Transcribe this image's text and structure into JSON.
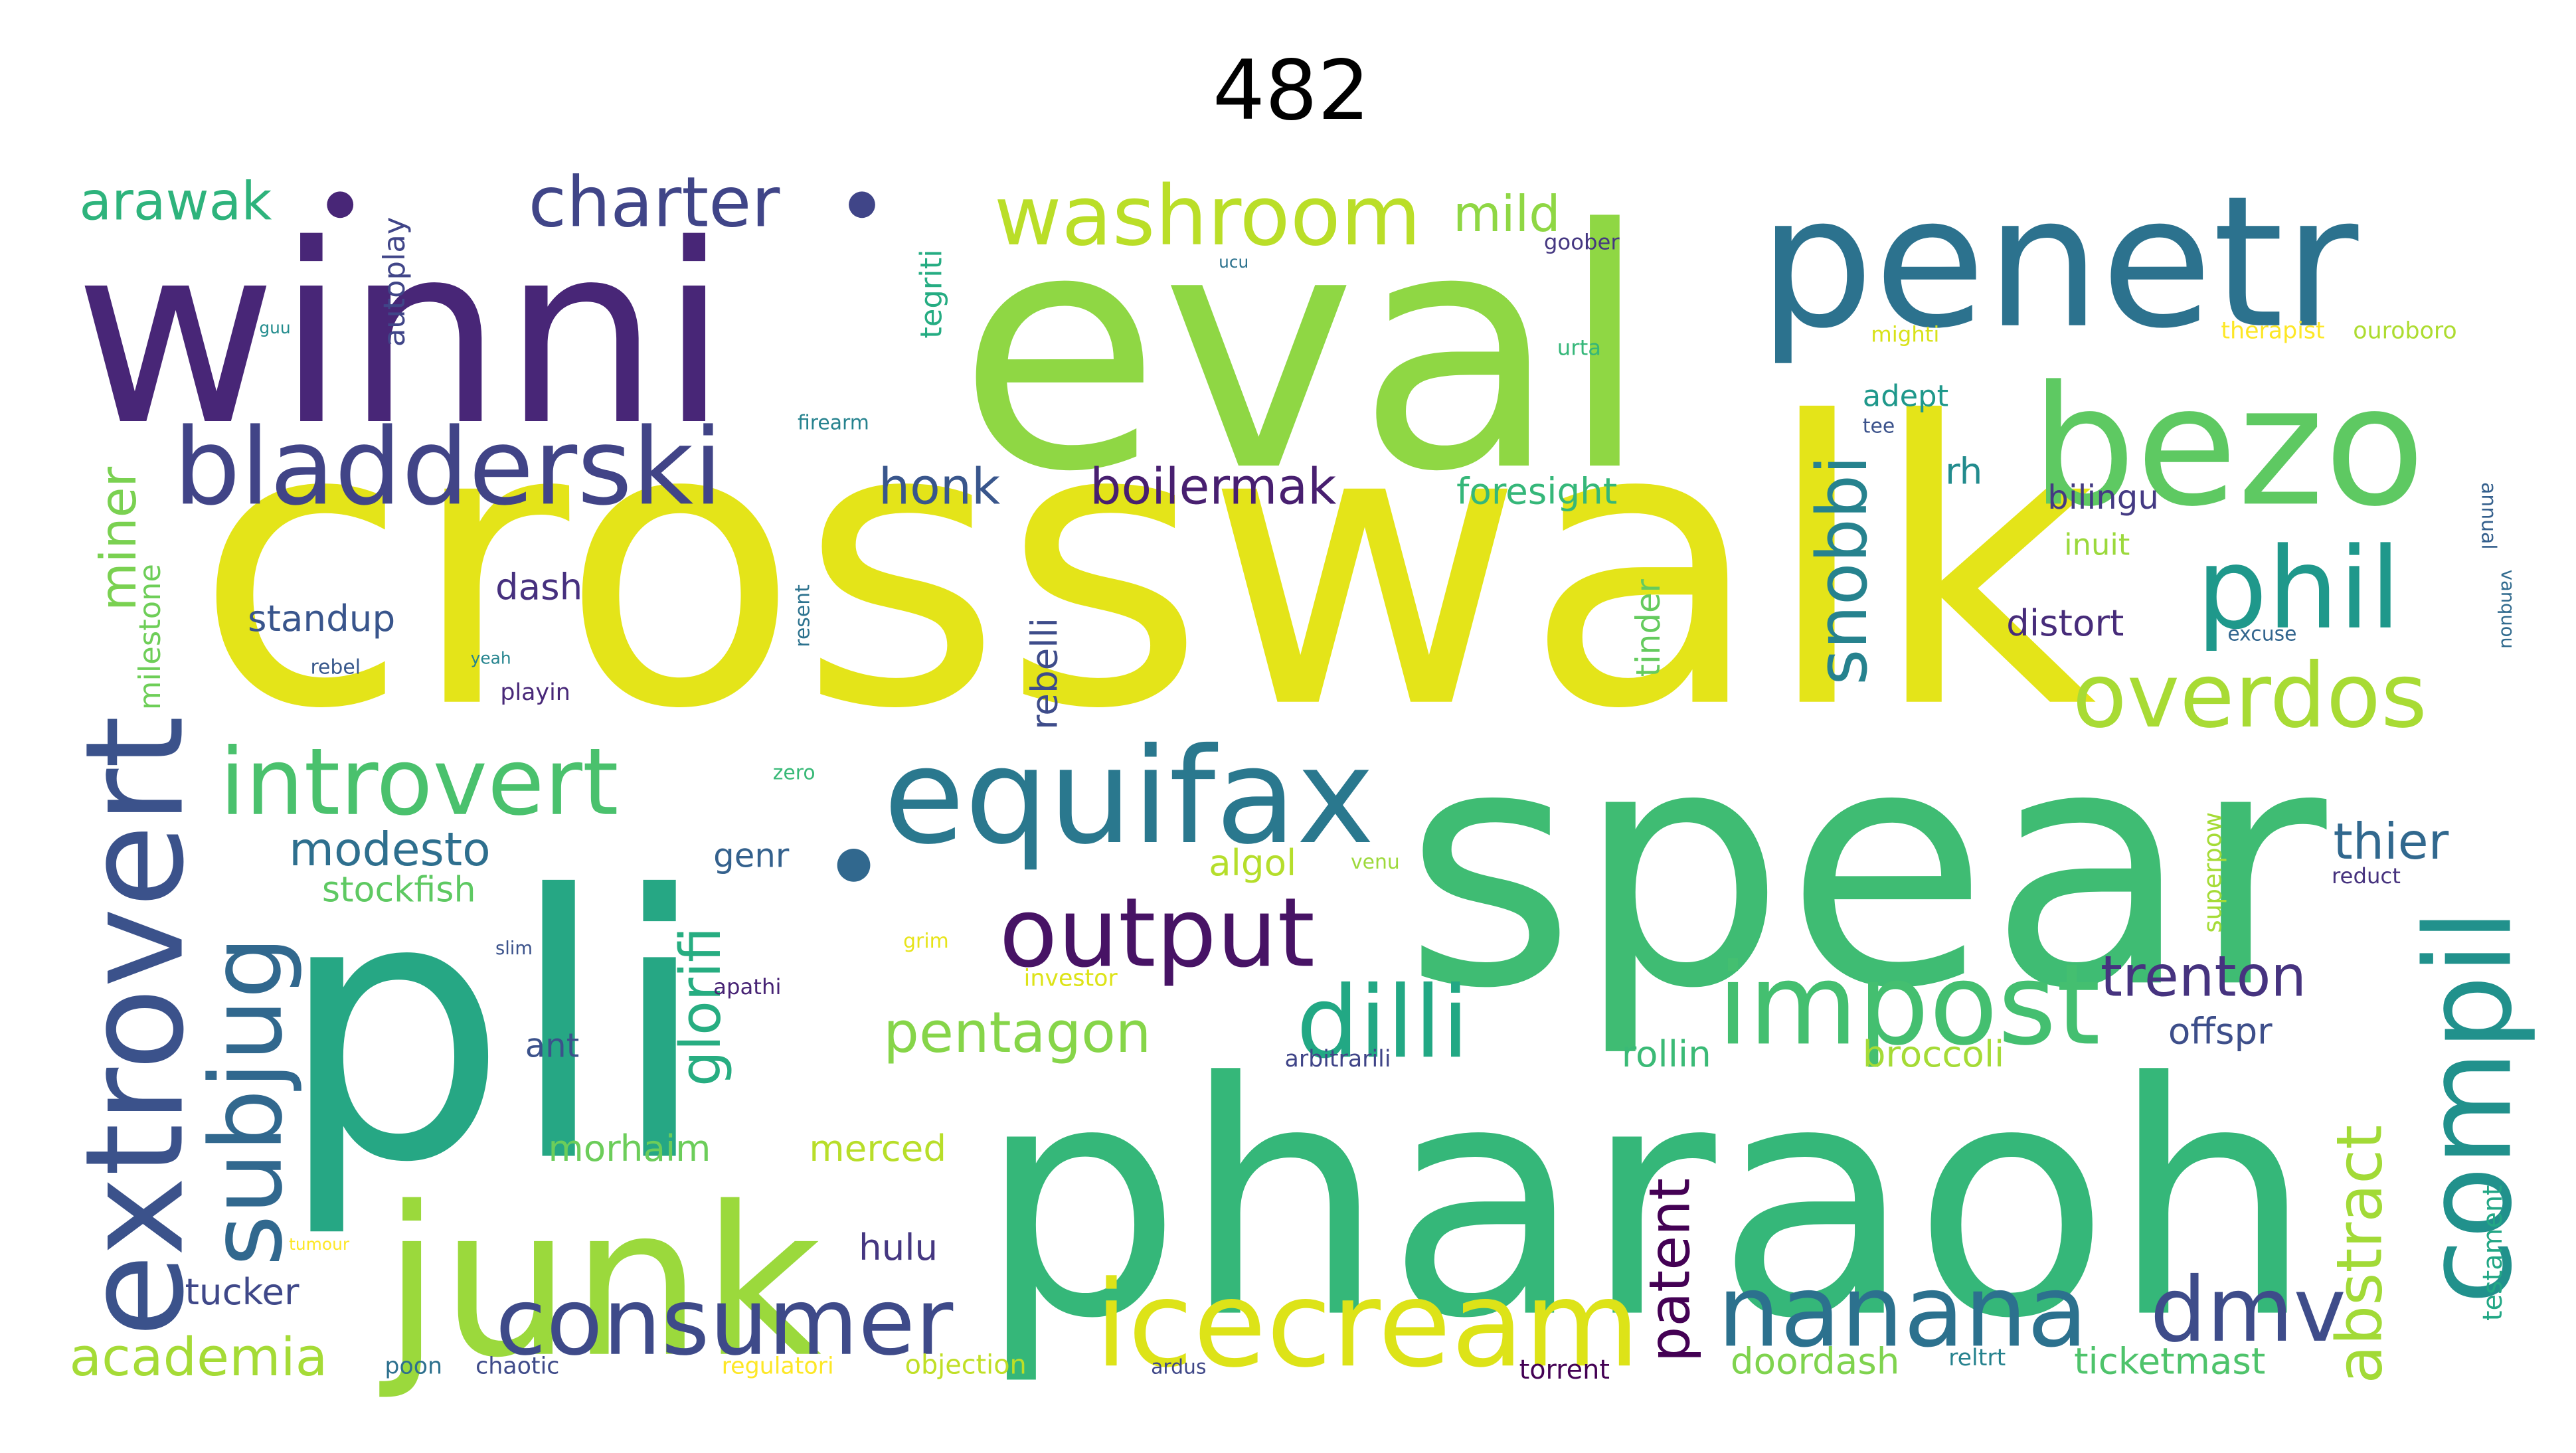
{
  "title": "482",
  "words": [
    {
      "text": "crosswalk",
      "color": "#e4e419"
    },
    {
      "text": "spear",
      "color": "#3fbc73"
    },
    {
      "text": "pharaoh",
      "color": "#35b779"
    },
    {
      "text": "pli",
      "color": "#26a784"
    },
    {
      "text": "eval",
      "color": "#8fd744"
    },
    {
      "text": "winni",
      "color": "#482677"
    },
    {
      "text": "penetr",
      "color": "#2c728e"
    },
    {
      "text": "junk",
      "color": "#9bd93c"
    },
    {
      "text": "bezo",
      "color": "#5ec962"
    },
    {
      "text": "extrovert",
      "color": "#3b528b"
    },
    {
      "text": "equifax",
      "color": "#2a788e"
    },
    {
      "text": "bladderski",
      "color": "#414487"
    },
    {
      "text": "icecream",
      "color": "#dde318"
    },
    {
      "text": "impost",
      "color": "#44bf70"
    },
    {
      "text": "compil",
      "color": "#21918c"
    },
    {
      "text": "nanana",
      "color": "#2c718e"
    },
    {
      "text": "consumer",
      "color": "#3e4a89"
    },
    {
      "text": "subjug",
      "color": "#31688e"
    },
    {
      "text": "introvert",
      "color": "#4ac16d"
    },
    {
      "text": "phil",
      "color": "#1f988b"
    },
    {
      "text": "output",
      "color": "#471365"
    },
    {
      "text": "dilli",
      "color": "#22a884"
    },
    {
      "text": "overdos",
      "color": "#a8db34"
    },
    {
      "text": "washroom",
      "color": "#bade28"
    },
    {
      "text": "dmv",
      "color": "#3e4c8a"
    },
    {
      "text": "snobbi",
      "color": "#26828e"
    },
    {
      "text": "charter",
      "color": "#404588"
    },
    {
      "text": "abstract",
      "color": "#a2da37"
    },
    {
      "text": "trenton",
      "color": "#46337f"
    },
    {
      "text": "pentagon",
      "color": "#86d549"
    },
    {
      "text": "academia",
      "color": "#a5db36"
    },
    {
      "text": "arawak",
      "color": "#2eb37c"
    },
    {
      "text": "boilermak",
      "color": "#481f70"
    },
    {
      "text": "glorifi",
      "color": "#27ad81"
    },
    {
      "text": "patent",
      "color": "#440154"
    },
    {
      "text": "thier",
      "color": "#31688e"
    },
    {
      "text": "modesto",
      "color": "#2e6f8e"
    },
    {
      "text": "honk",
      "color": "#39568c"
    },
    {
      "text": "mild",
      "color": "#8fd744"
    },
    {
      "text": "miner",
      "color": "#7ad151"
    },
    {
      "text": "foresight",
      "color": "#35b779"
    },
    {
      "text": "ticketmast",
      "color": "#4ec36b"
    },
    {
      "text": "doordash",
      "color": "#7fd34e"
    },
    {
      "text": "stockfish",
      "color": "#5ec962"
    },
    {
      "text": "offspr",
      "color": "#3d4e8a"
    },
    {
      "text": "standup",
      "color": "#39558c"
    },
    {
      "text": "rebelli",
      "color": "#3e4c8a"
    },
    {
      "text": "broccoli",
      "color": "#a5db36"
    },
    {
      "text": "rollin",
      "color": "#3aba76"
    },
    {
      "text": "algol",
      "color": "#b5de2b"
    },
    {
      "text": "morhaim",
      "color": "#6ccd5a"
    },
    {
      "text": "hulu",
      "color": "#453781"
    },
    {
      "text": "tucker",
      "color": "#3f4889"
    },
    {
      "text": "distort",
      "color": "#472c7a"
    },
    {
      "text": "tinder",
      "color": "#65cb5e"
    },
    {
      "text": "bilingu",
      "color": "#443a83"
    },
    {
      "text": "dash",
      "color": "#46307e"
    },
    {
      "text": "ant",
      "color": "#3b528b"
    },
    {
      "text": "genr",
      "color": "#34618d"
    },
    {
      "text": "merced",
      "color": "#b8de29"
    },
    {
      "text": "rh",
      "color": "#228b8d"
    },
    {
      "text": "adept",
      "color": "#1f988b"
    },
    {
      "text": "autoplay",
      "color": "#404588"
    },
    {
      "text": "tegriti",
      "color": "#25ac82"
    },
    {
      "text": "milestone",
      "color": "#6ece58"
    },
    {
      "text": "testament",
      "color": "#22a785"
    },
    {
      "text": "superpow",
      "color": "#a5db36"
    },
    {
      "text": "inuit",
      "color": "#9bd93c"
    },
    {
      "text": "objection",
      "color": "#c0df25"
    },
    {
      "text": "chaotic",
      "color": "#3e4a89"
    },
    {
      "text": "poon",
      "color": "#2d708e"
    },
    {
      "text": "torrent",
      "color": "#440154"
    },
    {
      "text": "regulatori",
      "color": "#fde725"
    },
    {
      "text": "investor",
      "color": "#dde318"
    },
    {
      "text": "arbitrarili",
      "color": "#404588"
    },
    {
      "text": "therapist",
      "color": "#fde725"
    },
    {
      "text": "ouroboro",
      "color": "#addc30"
    },
    {
      "text": "mighti",
      "color": "#d8e219"
    },
    {
      "text": "goober",
      "color": "#453781"
    },
    {
      "text": "firearm",
      "color": "#26828e"
    },
    {
      "text": "resent",
      "color": "#2c728e"
    },
    {
      "text": "excuse",
      "color": "#32658e"
    },
    {
      "text": "reduct",
      "color": "#46327e"
    },
    {
      "text": "playin",
      "color": "#482878"
    },
    {
      "text": "rebel",
      "color": "#38588c"
    },
    {
      "text": "apathi",
      "color": "#482475"
    },
    {
      "text": "grim",
      "color": "#e7e419"
    },
    {
      "text": "venu",
      "color": "#9dd93b"
    },
    {
      "text": "zero",
      "color": "#38b977"
    },
    {
      "text": "tee",
      "color": "#3b528b"
    },
    {
      "text": "urta",
      "color": "#35b779"
    },
    {
      "text": "annual",
      "color": "#35608d"
    },
    {
      "text": "reltrt",
      "color": "#26828e"
    },
    {
      "text": "ardus",
      "color": "#3f4788"
    },
    {
      "text": "slim",
      "color": "#3b528b"
    },
    {
      "text": "yeah",
      "color": "#25848e"
    },
    {
      "text": "tumour",
      "color": "#fde725"
    },
    {
      "text": "guu",
      "color": "#228c8d"
    },
    {
      "text": "vanquou",
      "color": "#306a8e"
    },
    {
      "text": "ucu",
      "color": "#2c728e"
    }
  ]
}
